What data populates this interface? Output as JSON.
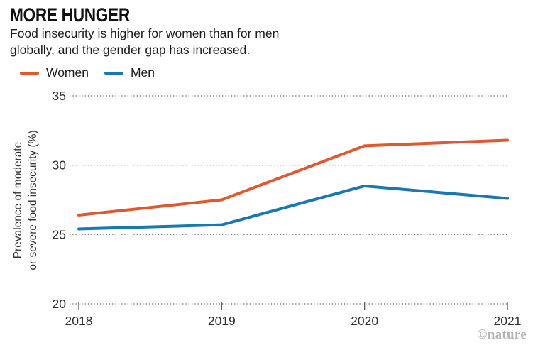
{
  "header": {
    "title": "MORE HUNGER",
    "subtitle_line1": "Food insecurity is higher for women than for men",
    "subtitle_line2": "globally, and the gender gap has increased."
  },
  "chart_data": {
    "type": "line",
    "x": [
      "2018",
      "2019",
      "2020",
      "2021"
    ],
    "series": [
      {
        "name": "Women",
        "color": "#E4572C",
        "values": [
          26.4,
          27.5,
          31.4,
          31.8
        ]
      },
      {
        "name": "Men",
        "color": "#1778B5",
        "values": [
          25.4,
          25.7,
          28.5,
          27.6
        ]
      }
    ],
    "title": "MORE HUNGER",
    "xlabel": "",
    "ylabel": "Prevalence of moderate or severe food insecurity (%)",
    "ylabel_line1": "Prevalence of moderate",
    "ylabel_line2": "or severe food insecurity (%)",
    "ylim": [
      20,
      35
    ],
    "yticks": [
      20,
      25,
      30,
      35
    ],
    "grid": "dotted-horizontal",
    "legend_position": "top-left"
  },
  "footer": {
    "credit": "©nature"
  },
  "colors": {
    "women_line": "#E4572C",
    "men_line": "#1778B5",
    "grid_dots": "#7D7D7D",
    "axis_text": "#2D2D2D",
    "title_text": "#111111",
    "credit_text": "#B3B3B3"
  }
}
